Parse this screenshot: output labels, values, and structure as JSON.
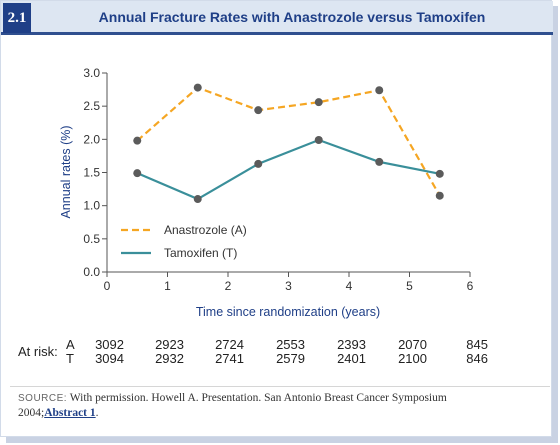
{
  "figure": {
    "number": "2.1",
    "title": "Annual Fracture Rates with Anastrozole versus Tamoxifen"
  },
  "chart_data": {
    "type": "line",
    "xlabel": "Time since randomization (years)",
    "ylabel": "Annual rates (%)",
    "xlim": [
      0,
      6
    ],
    "ylim": [
      0,
      3
    ],
    "x_ticks": [
      "0",
      "1",
      "2",
      "3",
      "4",
      "5",
      "6"
    ],
    "y_ticks": [
      "0.0",
      "0.5",
      "1.0",
      "1.5",
      "2.0",
      "2.5",
      "3.0"
    ],
    "grid": false,
    "legend_position": "bottom-left",
    "x": [
      0.5,
      1.5,
      2.5,
      3.5,
      4.5,
      5.5
    ],
    "series": [
      {
        "name": "Anastrozole (A)",
        "style": "dashed",
        "color": "#f5a623",
        "values": [
          1.98,
          2.78,
          2.44,
          2.56,
          2.74,
          1.15
        ]
      },
      {
        "name": "Tamoxifen (T)",
        "style": "solid",
        "color": "#3a8f9a",
        "values": [
          1.49,
          1.1,
          1.63,
          1.99,
          1.66,
          1.48
        ]
      }
    ],
    "marker_color": "#5b5b5b"
  },
  "at_risk": {
    "label": "At risk:",
    "rows": [
      {
        "arm": "A",
        "values": [
          "3092",
          "2923",
          "2724",
          "2553",
          "2393",
          "2070",
          "845"
        ]
      },
      {
        "arm": "T",
        "values": [
          "3094",
          "2932",
          "2741",
          "2579",
          "2401",
          "2100",
          "846"
        ]
      }
    ]
  },
  "source": {
    "label": "SOURCE:",
    "text": "With permission. Howell A. Presentation. San Antonio Breast Cancer Symposium 2004;",
    "link": "Abstract 1",
    "end": "."
  },
  "colors": {
    "brand_blue": "#1f3f87",
    "header_bg": "#dde6f2",
    "axis": "#555555"
  }
}
